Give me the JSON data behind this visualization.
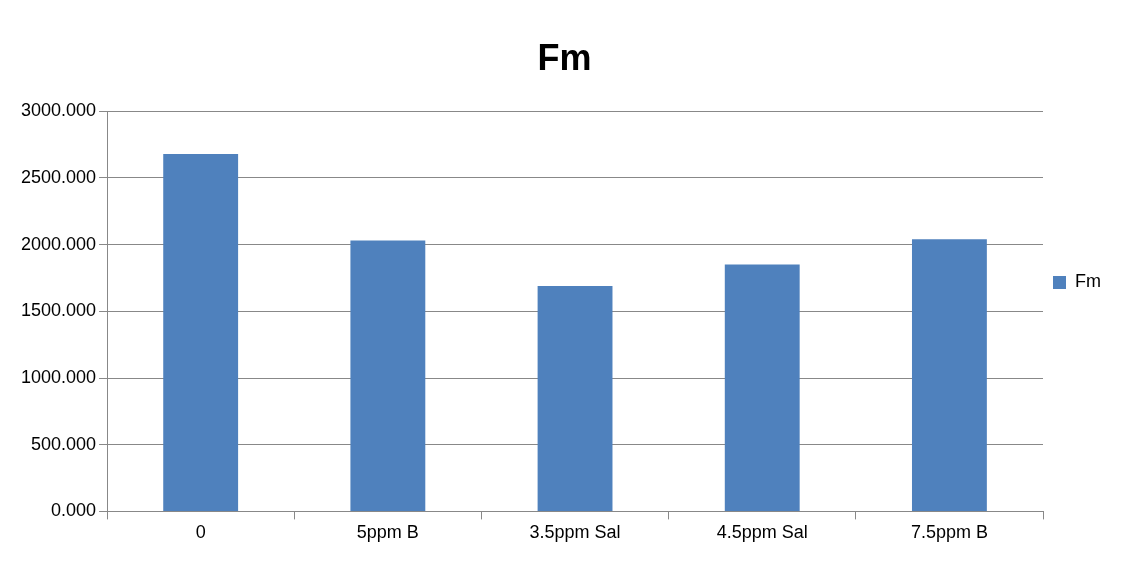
{
  "chart_data": {
    "type": "bar",
    "title": "Fm",
    "categories": [
      "0",
      "5ppm B",
      "3.5ppm Sal",
      "4.5ppm Sal",
      "7.5ppm B"
    ],
    "series": [
      {
        "name": "Fm",
        "color": "#4f81bd",
        "values": [
          2680,
          2030,
          1690,
          1850,
          2040
        ]
      }
    ],
    "ylim": [
      0,
      3000
    ],
    "yticks": [
      {
        "value": 0,
        "label": "0.000"
      },
      {
        "value": 500,
        "label": "500.000"
      },
      {
        "value": 1000,
        "label": "1000.000"
      },
      {
        "value": 1500,
        "label": "1500.000"
      },
      {
        "value": 2000,
        "label": "2000.000"
      },
      {
        "value": 2500,
        "label": "2500.000"
      },
      {
        "value": 3000,
        "label": "3000.000"
      }
    ],
    "grid": "y",
    "legend": "right"
  }
}
